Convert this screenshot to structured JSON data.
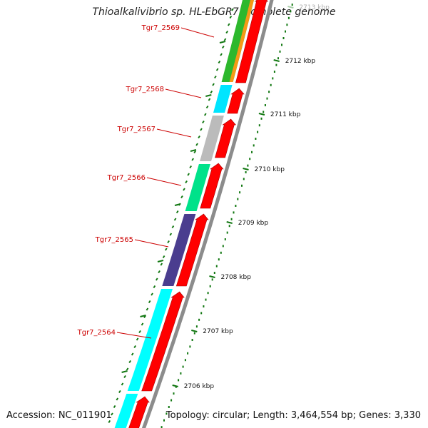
{
  "title": "Thioalkalivibrio sp. HL-EbGR7, complete genome",
  "accession": "Accession: NC_011901",
  "summary": "Topology: circular; Length: 3,464,554 bp; Genes: 3,330",
  "colors": {
    "cds": "#ff0000",
    "backbone": "#8c8c8c",
    "tick": "#117711",
    "label": "#cc0000"
  },
  "kbp_markers": [
    {
      "label": "2713 kbp",
      "faded": true
    },
    {
      "label": "2712 kbp"
    },
    {
      "label": "2711 kbp"
    },
    {
      "label": "2710 kbp"
    },
    {
      "label": "2709 kbp"
    },
    {
      "label": "2708 kbp"
    },
    {
      "label": "2707 kbp"
    },
    {
      "label": "2706 kbp"
    }
  ],
  "genes": [
    {
      "label": "Tgr7_2569",
      "color": "#2db82d",
      "extra_color": "#f59a16"
    },
    {
      "label": "Tgr7_2568",
      "color": "#00e5ff"
    },
    {
      "label": "Tgr7_2567",
      "color": "#bbbbbb"
    },
    {
      "label": "Tgr7_2566",
      "color": "#00e28a"
    },
    {
      "label": "Tgr7_2565",
      "color": "#4a3d8f"
    },
    {
      "label": "Tgr7_2564",
      "color": "#00ffff"
    }
  ]
}
